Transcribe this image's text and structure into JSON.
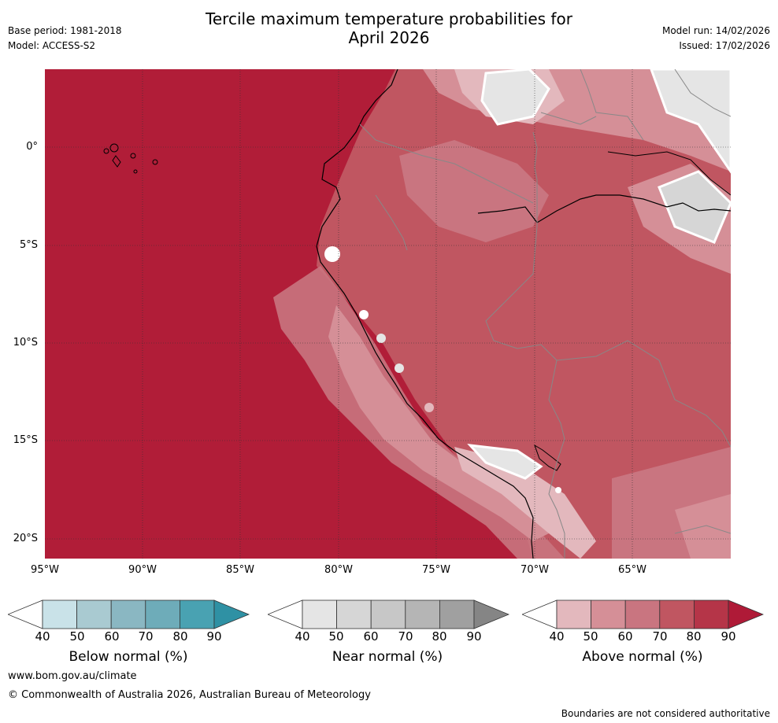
{
  "title": {
    "line1": "Tercile maximum temperature probabilities for",
    "line2": "April 2026"
  },
  "header_left": {
    "base_period": "Base period: 1981-2018",
    "model": "Model: ACCESS-S2"
  },
  "header_right": {
    "model_run": "Model run: 14/02/2026",
    "issued": "Issued: 17/02/2026"
  },
  "map": {
    "lat_labels": [
      "0°",
      "5°S",
      "10°S",
      "15°S",
      "20°S"
    ],
    "lon_labels": [
      "95°W",
      "90°W",
      "85°W",
      "80°W",
      "75°W",
      "70°W",
      "65°W"
    ]
  },
  "colorbars": [
    {
      "name": "below",
      "label": "Below normal (%)",
      "ticks": [
        "40",
        "50",
        "60",
        "70",
        "80",
        "90"
      ],
      "colors": [
        "#c9e2e8",
        "#a9cad1",
        "#8ab7c2",
        "#6eacb9",
        "#49a2b2",
        "#2f91a4"
      ]
    },
    {
      "name": "near",
      "label": "Near normal (%)",
      "ticks": [
        "40",
        "50",
        "60",
        "70",
        "80",
        "90"
      ],
      "colors": [
        "#e5e5e5",
        "#d6d6d6",
        "#c7c7c7",
        "#b5b5b5",
        "#a0a0a0",
        "#858585"
      ]
    },
    {
      "name": "above",
      "label": "Above normal (%)",
      "ticks": [
        "40",
        "50",
        "60",
        "70",
        "80",
        "90"
      ],
      "colors": [
        "#e3b8bd",
        "#d58f97",
        "#c97580",
        "#c05661",
        "#b53548",
        "#af1a37"
      ]
    }
  ],
  "footer": {
    "url": "www.bom.gov.au/climate",
    "copyright": "© Commonwealth of Australia 2026, Australian Bureau of Meteorology",
    "disclaimer": "Boundaries are not considered authoritative"
  },
  "colors": {
    "ocean": "#b11d38",
    "coast": "#000000",
    "border": "#888888",
    "grid": "#333333"
  }
}
